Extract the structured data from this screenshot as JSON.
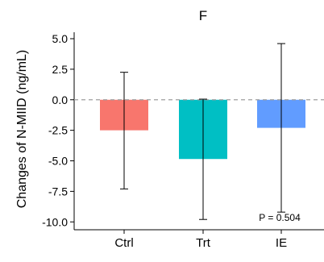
{
  "chart_data": {
    "type": "bar",
    "title": "F",
    "ylabel": "Changes of N-MIID (ng/mL)",
    "xlabel": "",
    "categories": [
      "Ctrl",
      "Trt",
      "IE"
    ],
    "values": [
      -2.5,
      -4.85,
      -2.3
    ],
    "error_low": [
      -7.3,
      -9.8,
      -9.2
    ],
    "error_high": [
      2.25,
      0.05,
      4.6
    ],
    "colors": [
      "#f8766d",
      "#00bfc4",
      "#619cff"
    ],
    "ylim": [
      -10.4,
      5.4
    ],
    "yticks": [
      5.0,
      2.5,
      0.0,
      -2.5,
      -5.0,
      -7.5,
      -10.0
    ],
    "ytick_labels": [
      "5.0",
      "2.5",
      "0.0",
      "-2.5",
      "-5.0",
      "-7.5",
      "-10.0"
    ],
    "reference_line": 0,
    "annotation": "P = 0.504",
    "grid": false,
    "legend": "none"
  }
}
